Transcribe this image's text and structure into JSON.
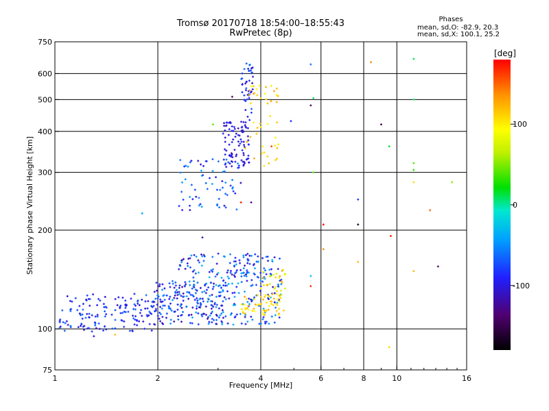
{
  "title": {
    "line1": "Tromsø 20170718 18:54:00–18:55:43",
    "line2": "RwPretec (8p)"
  },
  "phase_box": {
    "label": "Phases",
    "line_o": "mean, sd,O: -82.9, 20.3",
    "line_x": "mean, sd,X: 100.1, 25.2"
  },
  "chart_data": {
    "type": "scatter",
    "xlabel": "Frequency [MHz]",
    "ylabel": "Stationary phase Virtual Height [km]",
    "xscale": "log",
    "yscale": "log",
    "xlim": [
      1,
      16
    ],
    "ylim": [
      75,
      750
    ],
    "x_ticks": [
      1,
      2,
      4,
      6,
      8,
      10,
      16
    ],
    "y_ticks": [
      75,
      100,
      200,
      300,
      400,
      500,
      600,
      750
    ],
    "grid": true,
    "colorbar": {
      "label": "[deg]",
      "range": [
        -180,
        180
      ],
      "ticks": [
        100,
        0,
        -100
      ]
    },
    "clusters": [
      {
        "f": [
          1.03,
          1.95
        ],
        "h": [
          98,
          128
        ],
        "phase": [
          -110,
          -60
        ],
        "n": 150
      },
      {
        "f": [
          1.95,
          3.2
        ],
        "h": [
          103,
          140
        ],
        "phase": [
          -120,
          -40
        ],
        "n": 220
      },
      {
        "f": [
          2.3,
          4.0
        ],
        "h": [
          135,
          170
        ],
        "phase": [
          -120,
          -30
        ],
        "n": 90
      },
      {
        "f": [
          3.2,
          4.6
        ],
        "h": [
          103,
          170
        ],
        "phase": [
          -110,
          -30
        ],
        "n": 130
      },
      {
        "f": [
          3.5,
          4.7
        ],
        "h": [
          110,
          128
        ],
        "phase": [
          90,
          130
        ],
        "n": 60
      },
      {
        "f": [
          4.0,
          4.8
        ],
        "h": [
          130,
          155
        ],
        "phase": [
          60,
          140
        ],
        "n": 25
      },
      {
        "f": [
          2.3,
          3.5
        ],
        "h": [
          230,
          330
        ],
        "phase": [
          -110,
          -40
        ],
        "n": 70
      },
      {
        "f": [
          3.1,
          3.7
        ],
        "h": [
          310,
          430
        ],
        "phase": [
          -115,
          -85
        ],
        "n": 90
      },
      {
        "f": [
          3.5,
          3.8
        ],
        "h": [
          430,
          650
        ],
        "phase": [
          -110,
          -60
        ],
        "n": 45
      },
      {
        "f": [
          3.6,
          4.5
        ],
        "h": [
          310,
          560
        ],
        "phase": [
          95,
          130
        ],
        "n": 45
      }
    ],
    "points": [
      {
        "f": 5.6,
        "h": 640,
        "phase": -60
      },
      {
        "f": 5.7,
        "h": 505,
        "phase": 10
      },
      {
        "f": 5.6,
        "h": 480,
        "phase": -140
      },
      {
        "f": 5.7,
        "h": 300,
        "phase": 40
      },
      {
        "f": 6.1,
        "h": 208,
        "phase": 175
      },
      {
        "f": 6.1,
        "h": 175,
        "phase": 140
      },
      {
        "f": 7.7,
        "h": 248,
        "phase": -80
      },
      {
        "f": 7.7,
        "h": 208,
        "phase": -160
      },
      {
        "f": 7.7,
        "h": 160,
        "phase": 120
      },
      {
        "f": 8.4,
        "h": 650,
        "phase": 140
      },
      {
        "f": 9.0,
        "h": 420,
        "phase": -150
      },
      {
        "f": 9.6,
        "h": 192,
        "phase": 170
      },
      {
        "f": 9.5,
        "h": 360,
        "phase": 15
      },
      {
        "f": 9.5,
        "h": 88,
        "phase": 110
      },
      {
        "f": 11.2,
        "h": 665,
        "phase": 10
      },
      {
        "f": 11.2,
        "h": 500,
        "phase": 10
      },
      {
        "f": 11.2,
        "h": 320,
        "phase": 40
      },
      {
        "f": 11.2,
        "h": 305,
        "phase": 30
      },
      {
        "f": 11.2,
        "h": 280,
        "phase": 110
      },
      {
        "f": 11.2,
        "h": 150,
        "phase": 120
      },
      {
        "f": 12.5,
        "h": 230,
        "phase": 150
      },
      {
        "f": 13.2,
        "h": 155,
        "phase": -140
      },
      {
        "f": 14.5,
        "h": 280,
        "phase": 50
      },
      {
        "f": 4.3,
        "h": 360,
        "phase": 160
      },
      {
        "f": 4.5,
        "h": 365,
        "phase": 100
      },
      {
        "f": 3.5,
        "h": 243,
        "phase": 170
      },
      {
        "f": 3.75,
        "h": 243,
        "phase": -120
      },
      {
        "f": 2.9,
        "h": 420,
        "phase": 40
      },
      {
        "f": 1.5,
        "h": 96,
        "phase": 120
      },
      {
        "f": 1.3,
        "h": 95,
        "phase": -100
      },
      {
        "f": 1.8,
        "h": 225,
        "phase": -40
      },
      {
        "f": 2.7,
        "h": 190,
        "phase": -120
      },
      {
        "f": 3.3,
        "h": 510,
        "phase": -140
      },
      {
        "f": 4.9,
        "h": 430,
        "phase": -90
      },
      {
        "f": 5.6,
        "h": 145,
        "phase": -30
      },
      {
        "f": 5.6,
        "h": 135,
        "phase": 170
      }
    ]
  }
}
